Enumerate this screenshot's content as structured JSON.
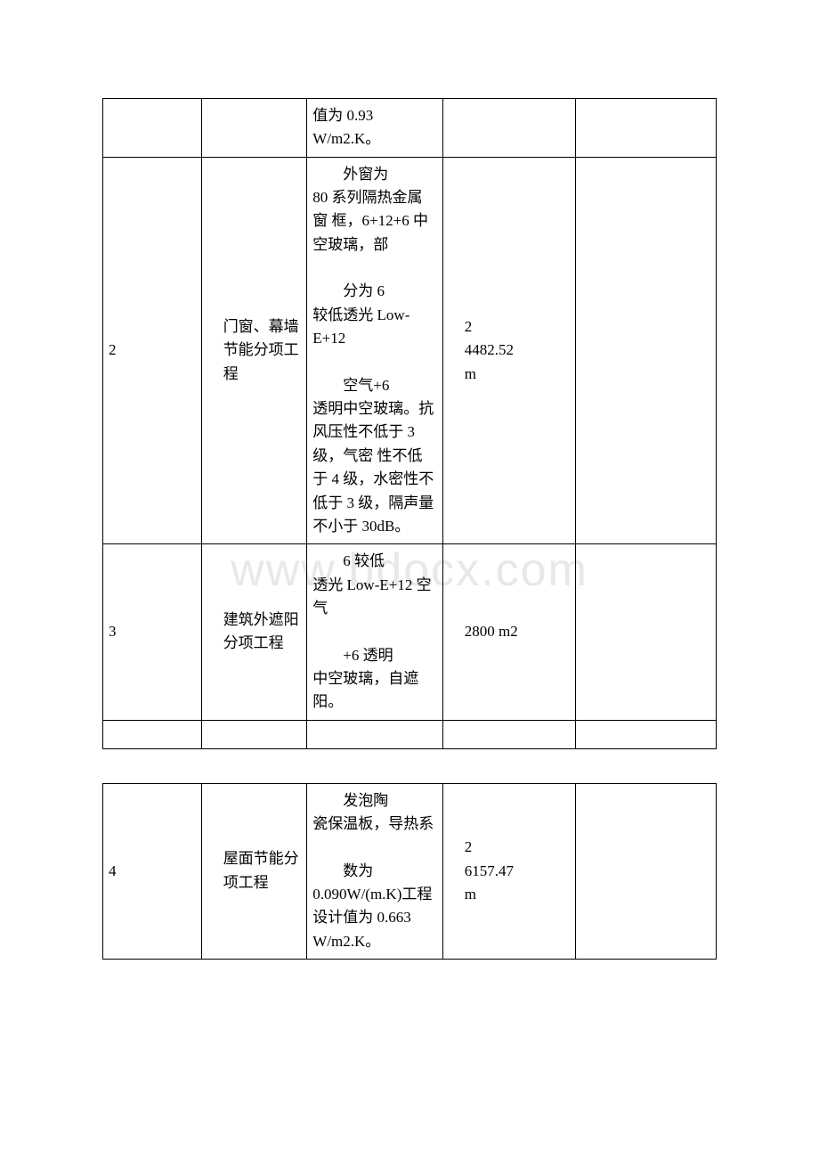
{
  "watermark": "www.bdocx.com",
  "table1": {
    "rows": [
      {
        "c1": "",
        "c2": "",
        "c3_indent": "",
        "c3_rest": "值为 0.93 W/m2.K。",
        "c4": "",
        "c5": ""
      },
      {
        "c1": "2",
        "c2": "门窗、幕墙节能分项工程",
        "c3_para1_indent": "外窗为",
        "c3_para1_rest": "80 系列隔热金属窗 框，6+12+6 中空玻璃，部",
        "c3_para2_indent": "分为 6",
        "c3_para2_rest": "较低透光 Low-E+12",
        "c3_para3_indent": "空气+6",
        "c3_para3_rest": "透明中空玻璃。抗 风压性不低于 3 级，气密 性不低于 4 级，水密性不低于 3 级，隔声量不小于 30dB。",
        "c4_sup": "2",
        "c4_val": "4482.52",
        "c4_unit": "m",
        "c5": ""
      },
      {
        "c1": "3",
        "c2": "建筑外遮阳分项工程",
        "c3_para1_indent": "6 较低",
        "c3_para1_rest": "透光 Low-E+12 空气",
        "c3_para2_indent": "+6 透明",
        "c3_para2_rest": "中空玻璃，自遮阳。",
        "c4": "2800 m2",
        "c5": ""
      }
    ]
  },
  "table2": {
    "rows": [
      {
        "c1": "4",
        "c2": "屋面节能分项工程",
        "c3_para1_indent": "发泡陶",
        "c3_para1_rest": "瓷保温板，导热系",
        "c3_para2_indent": "数为",
        "c3_para2_rest": "0.090W/(m.K)工程 设计值为 0.663 W/m2.K。",
        "c4_sup": "2",
        "c4_val": "6157.47",
        "c4_unit": "m",
        "c5": ""
      }
    ]
  }
}
